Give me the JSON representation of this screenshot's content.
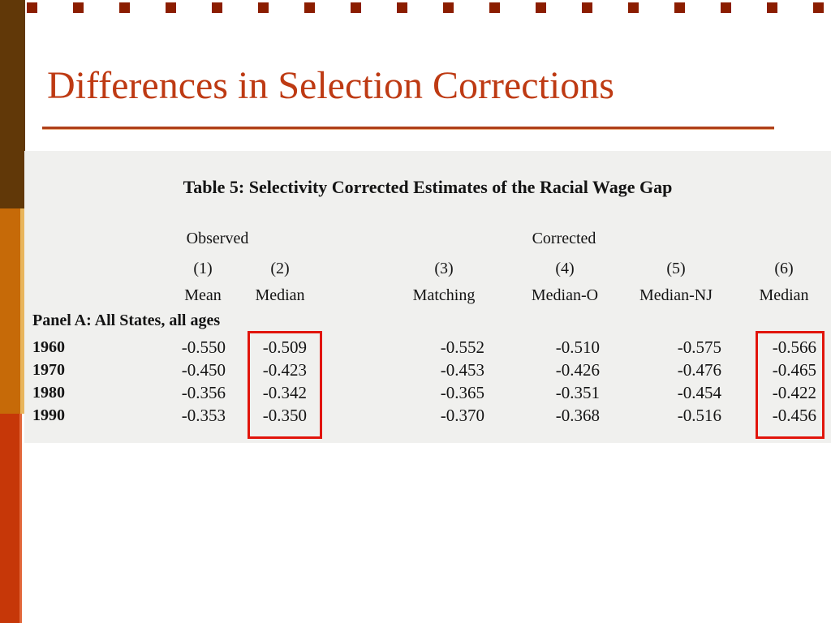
{
  "slide": {
    "title": "Differences in Selection Corrections"
  },
  "table": {
    "title": "Table 5: Selectivity Corrected Estimates of the Racial Wage Gap",
    "group_headers": [
      "Observed",
      "Corrected"
    ],
    "column_numbers": [
      "(1)",
      "(2)",
      "(3)",
      "(4)",
      "(5)",
      "(6)"
    ],
    "column_names": [
      "Mean",
      "Median",
      "Matching",
      "Median-O",
      "Median-NJ",
      "Median"
    ],
    "panel_label": "Panel A: All States, all ages",
    "rows": [
      {
        "year": "1960",
        "values": [
          "-0.550",
          "-0.509",
          "-0.552",
          "-0.510",
          "-0.575",
          "-0.566"
        ]
      },
      {
        "year": "1970",
        "values": [
          "-0.450",
          "-0.423",
          "-0.453",
          "-0.426",
          "-0.476",
          "-0.465"
        ]
      },
      {
        "year": "1980",
        "values": [
          "-0.356",
          "-0.342",
          "-0.365",
          "-0.351",
          "-0.454",
          "-0.422"
        ]
      },
      {
        "year": "1990",
        "values": [
          "-0.353",
          "-0.350",
          "-0.370",
          "-0.368",
          "-0.516",
          "-0.456"
        ]
      }
    ],
    "highlights": [
      {
        "column": "(2)",
        "style": "red-box"
      },
      {
        "column": "(6)",
        "style": "red-box"
      }
    ]
  },
  "decor": {
    "top_squares_count": 18
  },
  "colors": {
    "title_text": "#BE3A13",
    "title_rule": "#AF4019",
    "sidebar_brown": "#613808",
    "sidebar_orange": "#C66A08",
    "sidebar_gold_stripe": "#E8B55C",
    "sidebar_red": "#C63708",
    "top_squares": "#8B1D00",
    "highlight_box": "#E1140B",
    "table_background": "#F0F0EE",
    "table_text": "#141414"
  }
}
